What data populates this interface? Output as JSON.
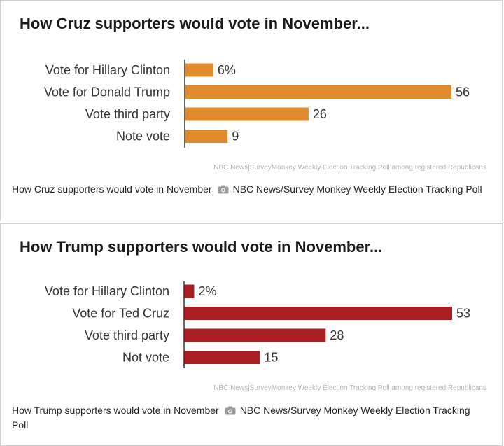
{
  "panels": [
    {
      "caption": "How Cruz supporters would vote in November",
      "caption_credit": "NBC News/Survey Monkey Weekly Election Tracking Poll",
      "camera_icon": "camera-icon"
    },
    {
      "caption": "How Trump supporters would vote in November",
      "caption_credit": "NBC News/Survey Monkey Weekly Election Tracking Poll",
      "camera_icon": "camera-icon"
    }
  ],
  "chart_data": [
    {
      "type": "bar",
      "orientation": "horizontal",
      "title": "How Cruz supporters would vote in November...",
      "categories": [
        "Vote for Hillary Clinton",
        "Vote for Donald Trump",
        "Vote third party",
        "Note vote"
      ],
      "values": [
        6,
        56,
        26,
        9
      ],
      "data_labels": [
        "6%",
        "56",
        "26",
        "9"
      ],
      "color": "#e08a2c",
      "xlim": [
        0,
        56
      ],
      "source": "NBC News|SurveyMonkey Weekly Election Tracking Poll among registered Republicans"
    },
    {
      "type": "bar",
      "orientation": "horizontal",
      "title": "How Trump supporters would vote in November...",
      "categories": [
        "Vote for Hillary Clinton",
        "Vote for Ted Cruz",
        "Vote third party",
        "Not vote"
      ],
      "values": [
        2,
        53,
        28,
        15
      ],
      "data_labels": [
        "2%",
        "53",
        "28",
        "15"
      ],
      "color": "#a81e23",
      "xlim": [
        0,
        53
      ],
      "source": "NBC News|SurveyMonkey Weekly Election Tracking Poll among registered Republicans"
    }
  ]
}
